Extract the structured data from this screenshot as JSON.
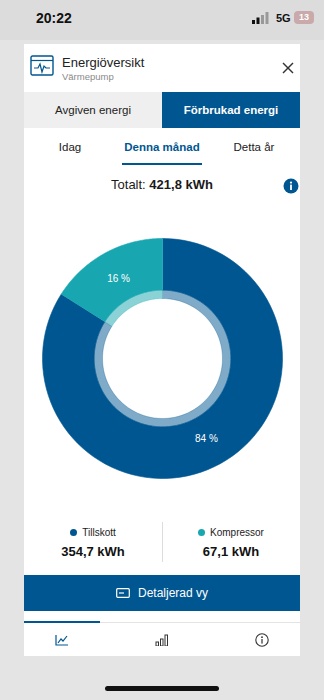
{
  "status_bar": {
    "time": "20:22",
    "network": "5G",
    "battery": "13"
  },
  "header": {
    "title": "Energiöversikt",
    "subtitle": "Värmepump"
  },
  "tabs": {
    "items": [
      "Avgiven energi",
      "Förbrukad energi"
    ],
    "active": 1
  },
  "period_tabs": {
    "items": [
      "Idag",
      "Denna månad",
      "Detta år"
    ],
    "active": 1
  },
  "total": {
    "label": "Totalt:",
    "value": "421,8 kWh"
  },
  "chart_data": {
    "type": "pie",
    "categories": [
      "Tillskott",
      "Kompressor"
    ],
    "values": [
      84,
      16
    ],
    "value_labels": [
      "84 %",
      "16 %"
    ],
    "colors": [
      "#005691",
      "#18a6b0"
    ],
    "amounts": [
      "354,7 kWh",
      "67,1 kWh"
    ],
    "data_labels": true,
    "legend": "bottom"
  },
  "button": "Detaljerad vy"
}
